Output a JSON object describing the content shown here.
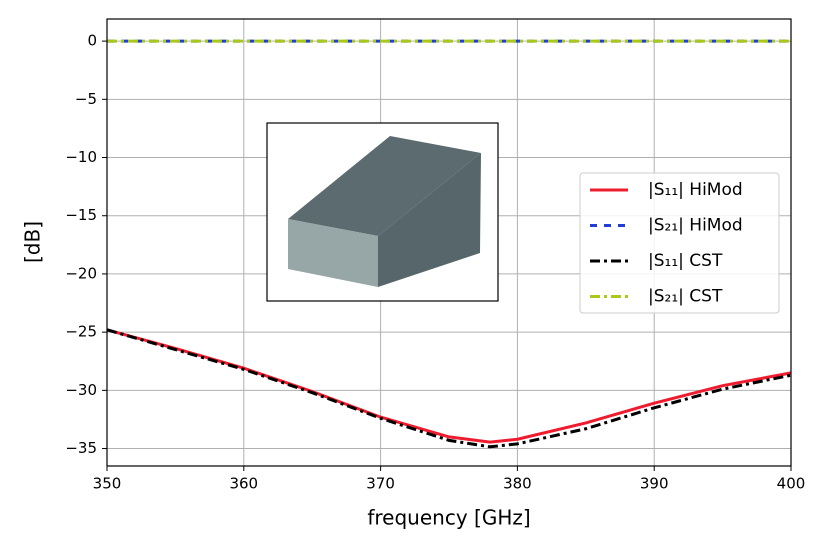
{
  "chart_data": {
    "type": "line",
    "xlabel": "frequency [GHz]",
    "ylabel": "[dB]",
    "x": [
      350,
      355,
      360,
      365,
      370,
      375,
      378,
      380,
      385,
      390,
      395,
      400
    ],
    "series": [
      {
        "name": "|S₁₁| HiMod",
        "color": "#ee1c2e",
        "linestyle": "solid",
        "values": [
          -24.8,
          -26.4,
          -28.1,
          -30.1,
          -32.3,
          -34.0,
          -34.45,
          -34.2,
          -32.8,
          -31.1,
          -29.6,
          -28.5
        ]
      },
      {
        "name": "|S₂₁| HiMod",
        "color": "#1f3fd6",
        "linestyle": "dashed",
        "values": [
          0,
          0,
          0,
          0,
          0,
          0,
          0,
          0,
          0,
          0,
          0,
          0
        ]
      },
      {
        "name": "|S₁₁| CST",
        "color": "#000000",
        "linestyle": "dashdot",
        "values": [
          -24.8,
          -26.5,
          -28.2,
          -30.2,
          -32.4,
          -34.3,
          -34.85,
          -34.6,
          -33.3,
          -31.5,
          -29.9,
          -28.7
        ]
      },
      {
        "name": "|S₂₁| CST",
        "color": "#a8c81a",
        "linestyle": "dashdot",
        "values": [
          0,
          0,
          0,
          0,
          0,
          0,
          0,
          0,
          0,
          0,
          0,
          0
        ]
      }
    ],
    "xlim": [
      350,
      400
    ],
    "xticks": [
      350,
      360,
      370,
      380,
      390,
      400
    ],
    "ylim": [
      -36.5,
      1.9
    ],
    "yticks": [
      {
        "value": -35,
        "label": "−35"
      },
      {
        "value": -30,
        "label": "−30"
      },
      {
        "value": -25,
        "label": "−25"
      },
      {
        "value": -20,
        "label": "−20"
      },
      {
        "value": -15,
        "label": "−15"
      },
      {
        "value": -10,
        "label": "−10"
      },
      {
        "value": -5,
        "label": "−5"
      },
      0
    ],
    "grid": true,
    "legend": "right"
  }
}
